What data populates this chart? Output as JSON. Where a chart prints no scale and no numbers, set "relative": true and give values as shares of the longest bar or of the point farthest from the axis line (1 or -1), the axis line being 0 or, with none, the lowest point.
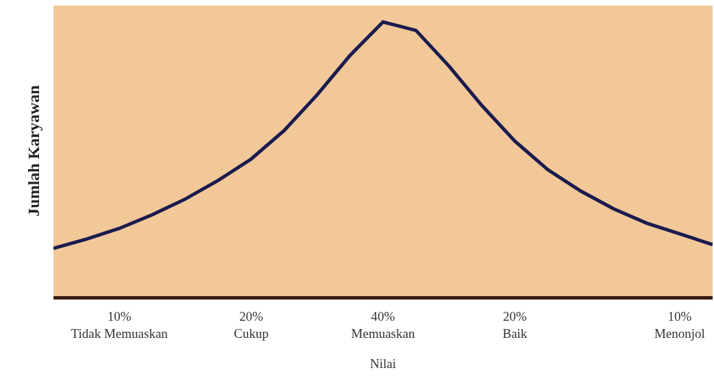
{
  "chart_data": {
    "type": "line",
    "relative": true,
    "xlabel": "Nilai",
    "ylabel": "Jumlah Karyawan",
    "categories": [
      null,
      null,
      "10%\nTidak Memuaskan",
      null,
      null,
      null,
      "20%\nCukup",
      null,
      null,
      null,
      "40%\nMemuaskan",
      null,
      null,
      null,
      "20%\nBaik",
      null,
      null,
      null,
      null,
      "10%\nMenonjol",
      null
    ],
    "series": [
      {
        "color": "#1b1b4e",
        "values": [
          0.174,
          0.208,
          0.247,
          0.297,
          0.354,
          0.422,
          0.5,
          0.604,
          0.734,
          0.878,
          1,
          0.969,
          0.839,
          0.695,
          0.565,
          0.461,
          0.383,
          0.318,
          0.266,
          0.227,
          0.188
        ]
      }
    ],
    "marker": "none",
    "line_style": "solid",
    "grid": false
  }
}
